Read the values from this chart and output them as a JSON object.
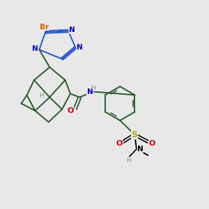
{
  "background_color": "#e8e8e8",
  "fig_size": [
    3.0,
    3.0
  ],
  "dpi": 100,
  "bond_color": "#2a5a2a",
  "triazole_color": "#2255cc",
  "atom_colors": {
    "Br": "#cc6600",
    "N": "#0000cc",
    "O": "#cc0000",
    "S": "#aaaa00",
    "H": "#888888",
    "C": "#000000"
  }
}
